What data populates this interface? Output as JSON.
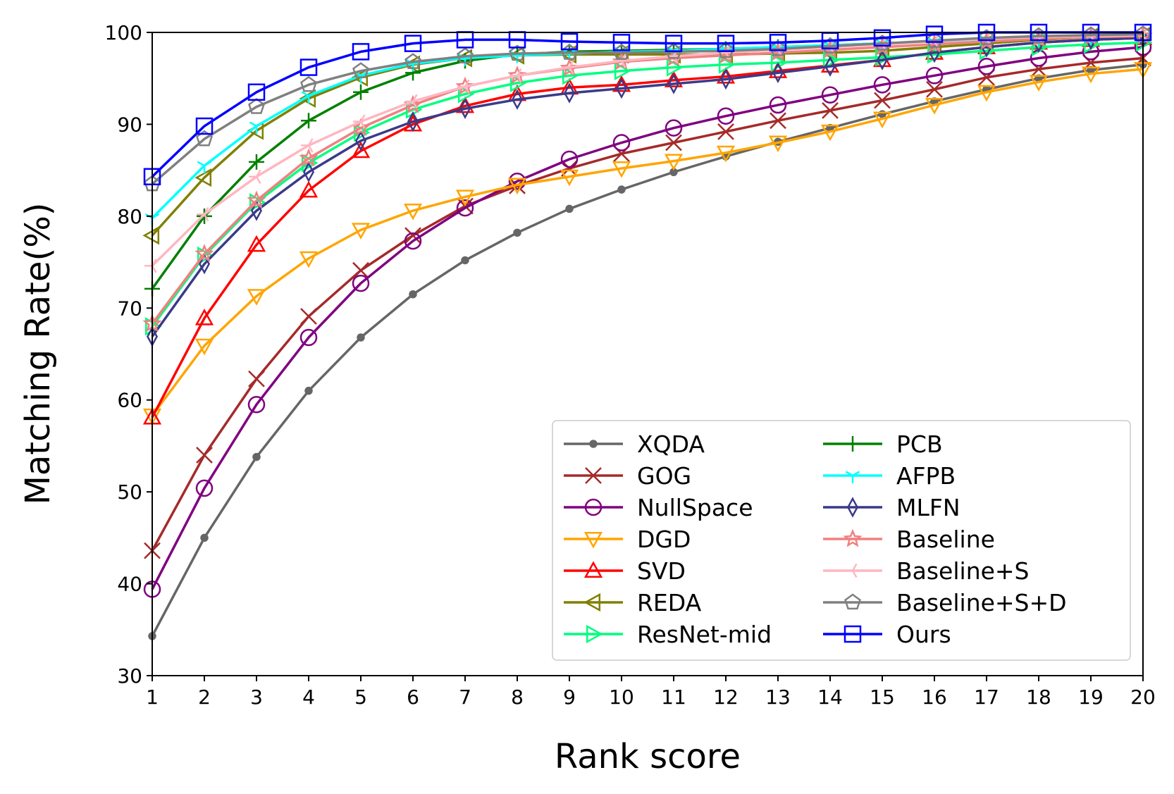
{
  "chart_data": {
    "type": "line",
    "title": "",
    "xlabel": "Rank score",
    "ylabel": "Matching Rate(%)",
    "xlim": [
      1,
      20
    ],
    "ylim": [
      30,
      100
    ],
    "x_ticks": [
      "1",
      "2",
      "3",
      "4",
      "5",
      "6",
      "7",
      "8",
      "9",
      "10",
      "11",
      "12",
      "13",
      "14",
      "15",
      "16",
      "17",
      "18",
      "19",
      "20"
    ],
    "y_ticks": [
      "30",
      "40",
      "50",
      "60",
      "70",
      "80",
      "90",
      "100"
    ],
    "grid": false,
    "legend_position": "lower-right",
    "legend_columns": 2,
    "x": [
      1,
      2,
      3,
      4,
      5,
      6,
      7,
      8,
      9,
      10,
      11,
      12,
      13,
      14,
      15,
      16,
      17,
      18,
      19,
      20
    ],
    "series": [
      {
        "name": "XQDA",
        "color": "#666666",
        "marker": "dot",
        "values": [
          34.3,
          45.0,
          53.8,
          61.0,
          66.8,
          71.5,
          75.2,
          78.2,
          80.8,
          82.9,
          84.8,
          86.5,
          88.1,
          89.6,
          91.1,
          92.5,
          93.8,
          95.0,
          95.9,
          96.5
        ]
      },
      {
        "name": "GOG",
        "color": "#a52a2a",
        "marker": "x",
        "values": [
          43.6,
          54.0,
          62.3,
          69.1,
          74.1,
          77.9,
          81.1,
          83.3,
          85.2,
          86.8,
          88.0,
          89.2,
          90.4,
          91.5,
          92.6,
          93.8,
          95.1,
          96.0,
          96.7,
          97.2
        ]
      },
      {
        "name": "NullSpace",
        "color": "#800080",
        "marker": "circle",
        "values": [
          39.4,
          50.4,
          59.5,
          66.8,
          72.7,
          77.3,
          80.9,
          83.8,
          86.2,
          88.0,
          89.6,
          90.9,
          92.1,
          93.2,
          94.3,
          95.3,
          96.3,
          97.2,
          97.9,
          98.4
        ]
      },
      {
        "name": "DGD",
        "color": "#ffa500",
        "marker": "triangle-down",
        "values": [
          58.3,
          65.9,
          71.3,
          75.4,
          78.5,
          80.6,
          82.1,
          83.4,
          84.3,
          85.2,
          86.0,
          86.9,
          88.0,
          89.2,
          90.6,
          92.1,
          93.5,
          94.6,
          95.5,
          96.0
        ]
      },
      {
        "name": "SVD",
        "color": "#ff0000",
        "marker": "triangle-up",
        "values": [
          58.1,
          68.9,
          76.9,
          82.8,
          87.1,
          90.0,
          92.0,
          93.3,
          94.0,
          94.3,
          94.8,
          95.2,
          95.8,
          96.4,
          97.0,
          97.8,
          98.4,
          98.9,
          99.2,
          99.4
        ]
      },
      {
        "name": "REDA",
        "color": "#808000",
        "marker": "triangle-left",
        "values": [
          77.9,
          84.2,
          89.3,
          92.8,
          95.1,
          96.5,
          97.2,
          97.5,
          97.6,
          97.6,
          97.6,
          97.6,
          97.7,
          97.8,
          98.0,
          98.4,
          98.8,
          99.2,
          99.5,
          99.6
        ]
      },
      {
        "name": "ResNet-mid",
        "color": "#00ff7f",
        "marker": "triangle-right",
        "values": [
          68.0,
          75.7,
          81.5,
          85.8,
          89.1,
          91.6,
          93.3,
          94.5,
          95.3,
          95.8,
          96.2,
          96.5,
          96.7,
          97.0,
          97.3,
          97.6,
          98.0,
          98.4,
          98.7,
          98.9
        ]
      },
      {
        "name": "PCB",
        "color": "#008000",
        "marker": "plus",
        "values": [
          72.1,
          80.0,
          85.9,
          90.4,
          93.5,
          95.6,
          96.9,
          97.6,
          97.9,
          98.0,
          98.1,
          98.2,
          98.4,
          98.6,
          98.8,
          99.0,
          99.2,
          99.4,
          99.5,
          99.6
        ]
      },
      {
        "name": "AFPB",
        "color": "#00ffff",
        "marker": "tri-down",
        "values": [
          79.8,
          85.5,
          89.8,
          93.1,
          95.3,
          96.6,
          97.2,
          97.5,
          97.7,
          97.9,
          98.0,
          98.2,
          98.4,
          98.6,
          98.8,
          99.0,
          99.2,
          99.4,
          99.5,
          99.6
        ]
      },
      {
        "name": "MLFN",
        "color": "#3a3a8a",
        "marker": "thin-diamond",
        "values": [
          66.9,
          74.8,
          80.6,
          84.8,
          88.2,
          90.3,
          91.7,
          92.7,
          93.4,
          93.9,
          94.4,
          94.9,
          95.6,
          96.3,
          97.0,
          97.8,
          98.4,
          98.9,
          99.2,
          99.4
        ]
      },
      {
        "name": "Baseline",
        "color": "#f08080",
        "marker": "star",
        "values": [
          68.3,
          75.9,
          81.7,
          86.3,
          89.6,
          92.1,
          94.1,
          95.3,
          96.1,
          96.8,
          97.2,
          97.5,
          97.8,
          98.1,
          98.4,
          98.7,
          99.0,
          99.3,
          99.5,
          99.6
        ]
      },
      {
        "name": "Baseline+S",
        "color": "#ffb6c1",
        "marker": "tri-left",
        "values": [
          74.6,
          80.2,
          84.3,
          87.7,
          90.3,
          92.5,
          94.1,
          95.3,
          96.2,
          96.9,
          97.4,
          97.8,
          98.1,
          98.4,
          98.7,
          99.0,
          99.3,
          99.5,
          99.6,
          99.7
        ]
      },
      {
        "name": "Baseline+S+D",
        "color": "#808080",
        "marker": "pentagon",
        "values": [
          83.5,
          88.4,
          91.9,
          94.3,
          95.8,
          96.8,
          97.4,
          97.7,
          97.8,
          97.8,
          97.9,
          98.0,
          98.2,
          98.5,
          98.8,
          99.1,
          99.4,
          99.6,
          99.7,
          99.8
        ]
      },
      {
        "name": "Ours",
        "color": "#0000ff",
        "marker": "square",
        "values": [
          84.3,
          89.8,
          93.5,
          96.2,
          97.9,
          98.8,
          99.2,
          99.2,
          99.0,
          98.9,
          98.8,
          98.8,
          98.9,
          99.1,
          99.4,
          99.8,
          100.0,
          100.0,
          100.0,
          100.0
        ]
      }
    ]
  }
}
